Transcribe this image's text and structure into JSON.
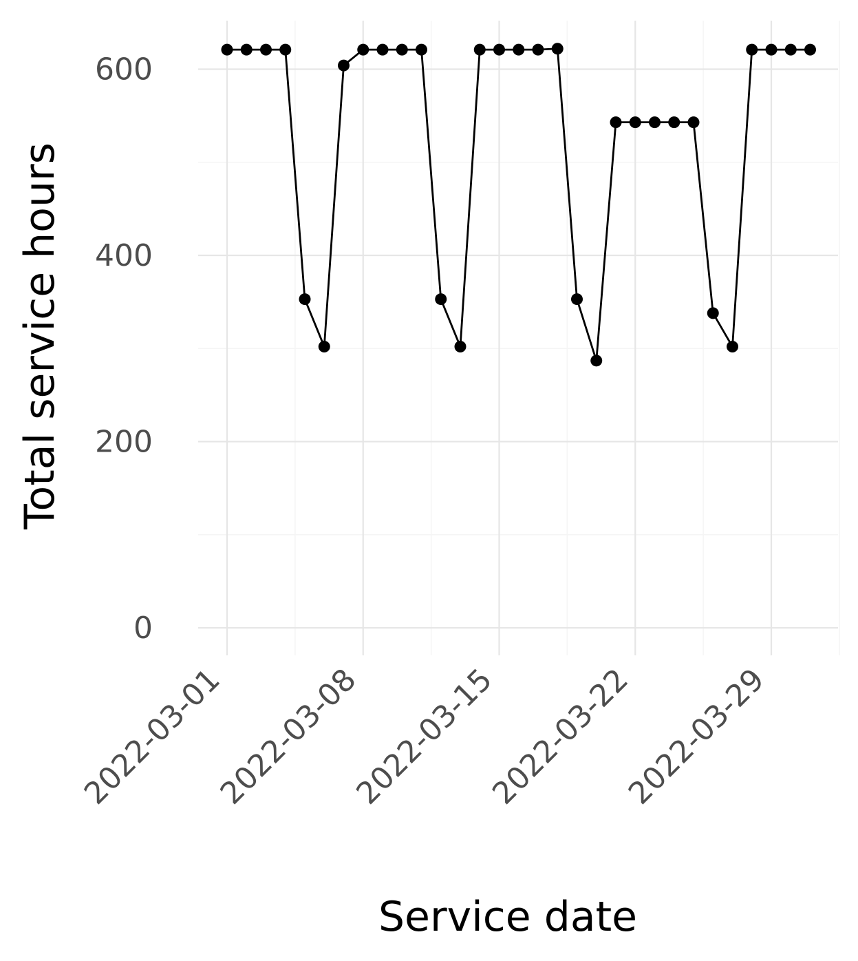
{
  "chart_data": {
    "type": "line",
    "title": "",
    "xlabel": "Service date",
    "ylabel": "Total service hours",
    "x_ticks": [
      "2022-03-01",
      "2022-03-08",
      "2022-03-15",
      "2022-03-22",
      "2022-03-29"
    ],
    "y_ticks": [
      "0",
      "200",
      "400",
      "600"
    ],
    "ylim": [
      -30,
      650
    ],
    "xlim": [
      "2022-02-29.5",
      "2022-04-02"
    ],
    "grid": true,
    "legend": "none",
    "series": [
      {
        "color": "#000000",
        "marker": "point",
        "x": [
          "2022-03-01",
          "2022-03-02",
          "2022-03-03",
          "2022-03-04",
          "2022-03-05",
          "2022-03-06",
          "2022-03-07",
          "2022-03-08",
          "2022-03-09",
          "2022-03-10",
          "2022-03-11",
          "2022-03-12",
          "2022-03-13",
          "2022-03-14",
          "2022-03-15",
          "2022-03-16",
          "2022-03-17",
          "2022-03-18",
          "2022-03-19",
          "2022-03-20",
          "2022-03-21",
          "2022-03-22",
          "2022-03-23",
          "2022-03-24",
          "2022-03-25",
          "2022-03-26",
          "2022-03-27",
          "2022-03-28",
          "2022-03-29",
          "2022-03-30",
          "2022-03-31"
        ],
        "values": [
          621,
          621,
          621,
          621,
          353,
          302,
          604,
          621,
          621,
          621,
          621,
          353,
          302,
          621,
          621,
          621,
          621,
          622,
          353,
          287,
          543,
          543,
          543,
          543,
          543,
          338,
          302,
          621,
          621,
          621,
          621
        ]
      }
    ]
  }
}
